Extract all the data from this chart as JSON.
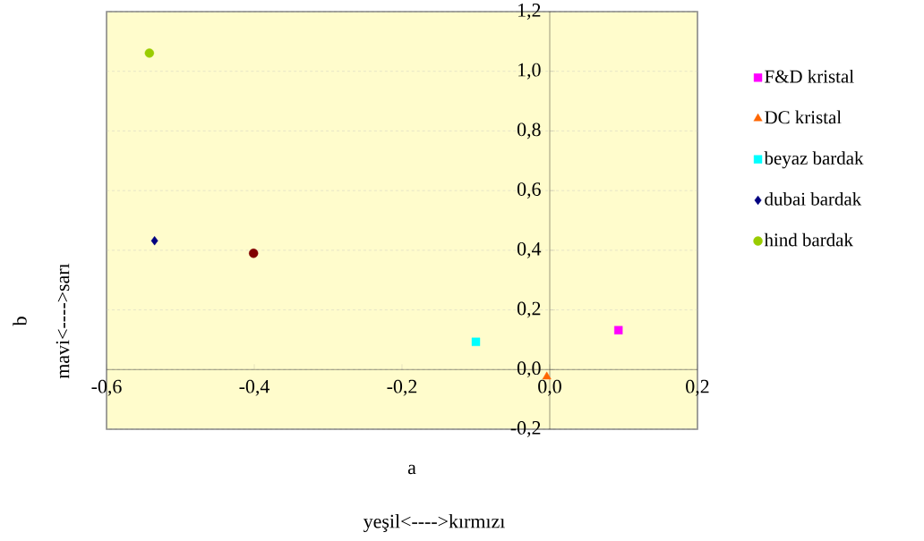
{
  "chart_data": {
    "type": "scatter",
    "xlabel": "a",
    "ylabel": "b",
    "annotations": [
      "yeşil<---->kırmızı",
      "mavi<---->sarı"
    ],
    "xlim": [
      -0.6,
      0.2
    ],
    "ylim": [
      -0.2,
      1.2
    ],
    "xticks": [
      {
        "value": -0.6,
        "label": "-0,6"
      },
      {
        "value": -0.4,
        "label": "-0,4"
      },
      {
        "value": -0.2,
        "label": "-0,2"
      },
      {
        "value": 0,
        "label": "0,0"
      },
      {
        "value": 0.2,
        "label": "0,2"
      }
    ],
    "yticks": [
      {
        "value": -0.2,
        "label": "-0,2"
      },
      {
        "value": 0,
        "label": "0,0"
      },
      {
        "value": 0.2,
        "label": "0,2"
      },
      {
        "value": 0.4,
        "label": "0,4"
      },
      {
        "value": 0.6,
        "label": "0,6"
      },
      {
        "value": 0.8,
        "label": "0,8"
      },
      {
        "value": 1.0,
        "label": "1,0"
      },
      {
        "value": 1.2,
        "label": "1,2"
      }
    ],
    "grid": "y",
    "legend": "right",
    "series": [
      {
        "name": "F&D kristal",
        "color": "#ff00ff",
        "marker": "square",
        "x": [
          0.093
        ],
        "values": [
          0.132
        ]
      },
      {
        "name": "DC kristal",
        "color": "#ff6600",
        "marker": "triangle",
        "x": [
          -0.004
        ],
        "values": [
          -0.024
        ]
      },
      {
        "name": "beyaz bardak",
        "color": "#00ffff",
        "marker": "square",
        "x": [
          -0.1
        ],
        "values": [
          0.093
        ]
      },
      {
        "name": "dubai bardak",
        "color": "#000080",
        "marker": "diamond",
        "x": [
          -0.535
        ],
        "values": [
          0.432
        ]
      },
      {
        "name": "hind bardak",
        "color": "#99cc00",
        "marker": "circle",
        "x": [
          -0.542
        ],
        "values": [
          1.061
        ]
      },
      {
        "color": "#800000",
        "marker": "circle",
        "x": [
          -0.401
        ],
        "values": [
          0.39
        ]
      }
    ]
  }
}
